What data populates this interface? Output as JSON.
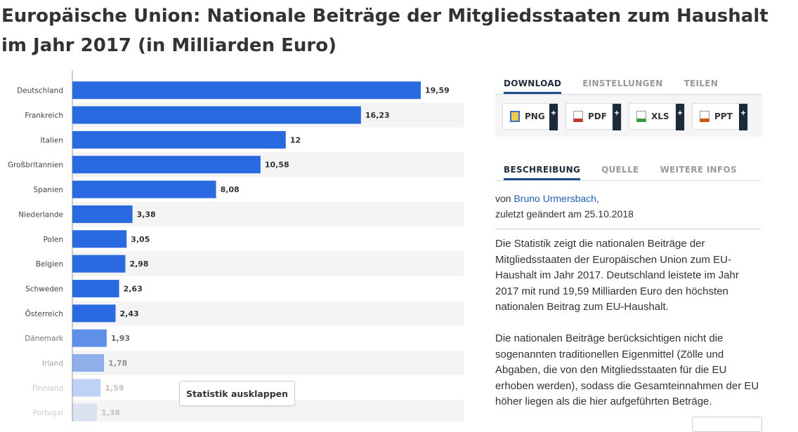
{
  "title": "Europäische Union: Nationale Beiträge der Mitgliedsstaaten zum Haushalt im Jahr 2017 (in Milliarden Euro)",
  "expand_button": "Statistik ausklappen",
  "tabs_top": [
    "DOWNLOAD",
    "EINSTELLUNGEN",
    "TEILEN"
  ],
  "downloads": [
    {
      "label": "PNG",
      "plus": "+",
      "icon": "png-file-icon",
      "color": "#3a6fd0"
    },
    {
      "label": "PDF",
      "plus": "+",
      "icon": "pdf-file-icon",
      "color": "#c0392b"
    },
    {
      "label": "XLS",
      "plus": "+",
      "icon": "xls-file-icon",
      "color": "#3a9a3a"
    },
    {
      "label": "PPT",
      "plus": "+",
      "icon": "ppt-file-icon",
      "color": "#d35400"
    }
  ],
  "tabs_info": [
    "BESCHREIBUNG",
    "QUELLE",
    "WEITERE INFOS"
  ],
  "author_prefix": "von",
  "author": "Bruno Urmersbach",
  "author_suffix": ",",
  "modified": "zuletzt geändert am 25.10.2018",
  "description": [
    "Die Statistik zeigt die nationalen Beiträge der Mitgliedsstaaten der Europäischen Union zum EU-Haushalt im Jahr 2017. Deutschland leistete im Jahr 2017 mit rund 19,59 Milliarden Euro den höchsten nationalen Beitrag zum EU-Haushalt.",
    "Die nationalen Beiträge berücksichtigen nicht die sogenannten traditionellen Eigenmittel (Zölle und Abgaben, die von den Mitgliedsstaaten für die EU erhoben werden), sodass die Gesamteinnahmen der EU höher liegen als die hier aufgeführten Beträge."
  ],
  "chart_data": {
    "type": "bar",
    "orientation": "horizontal",
    "categories": [
      "Deutschland",
      "Frankreich",
      "Italien",
      "Großbritannien",
      "Spanien",
      "Niederlande",
      "Polen",
      "Belgien",
      "Schweden",
      "Österreich",
      "Dänemark",
      "Irland",
      "Finnland",
      "Portugal"
    ],
    "values": [
      19.59,
      16.23,
      12,
      10.58,
      8.08,
      3.38,
      3.05,
      2.98,
      2.63,
      2.43,
      1.93,
      1.78,
      1.59,
      1.38
    ],
    "value_labels": [
      "19,59",
      "16,23",
      "12",
      "10,58",
      "8,08",
      "3,38",
      "3,05",
      "2,98",
      "2,63",
      "2,43",
      "1,93",
      "1,78",
      "1,59",
      "1,38"
    ],
    "xlim": [
      0,
      22
    ],
    "bar_color": "#2a6ae0",
    "grid": false
  }
}
